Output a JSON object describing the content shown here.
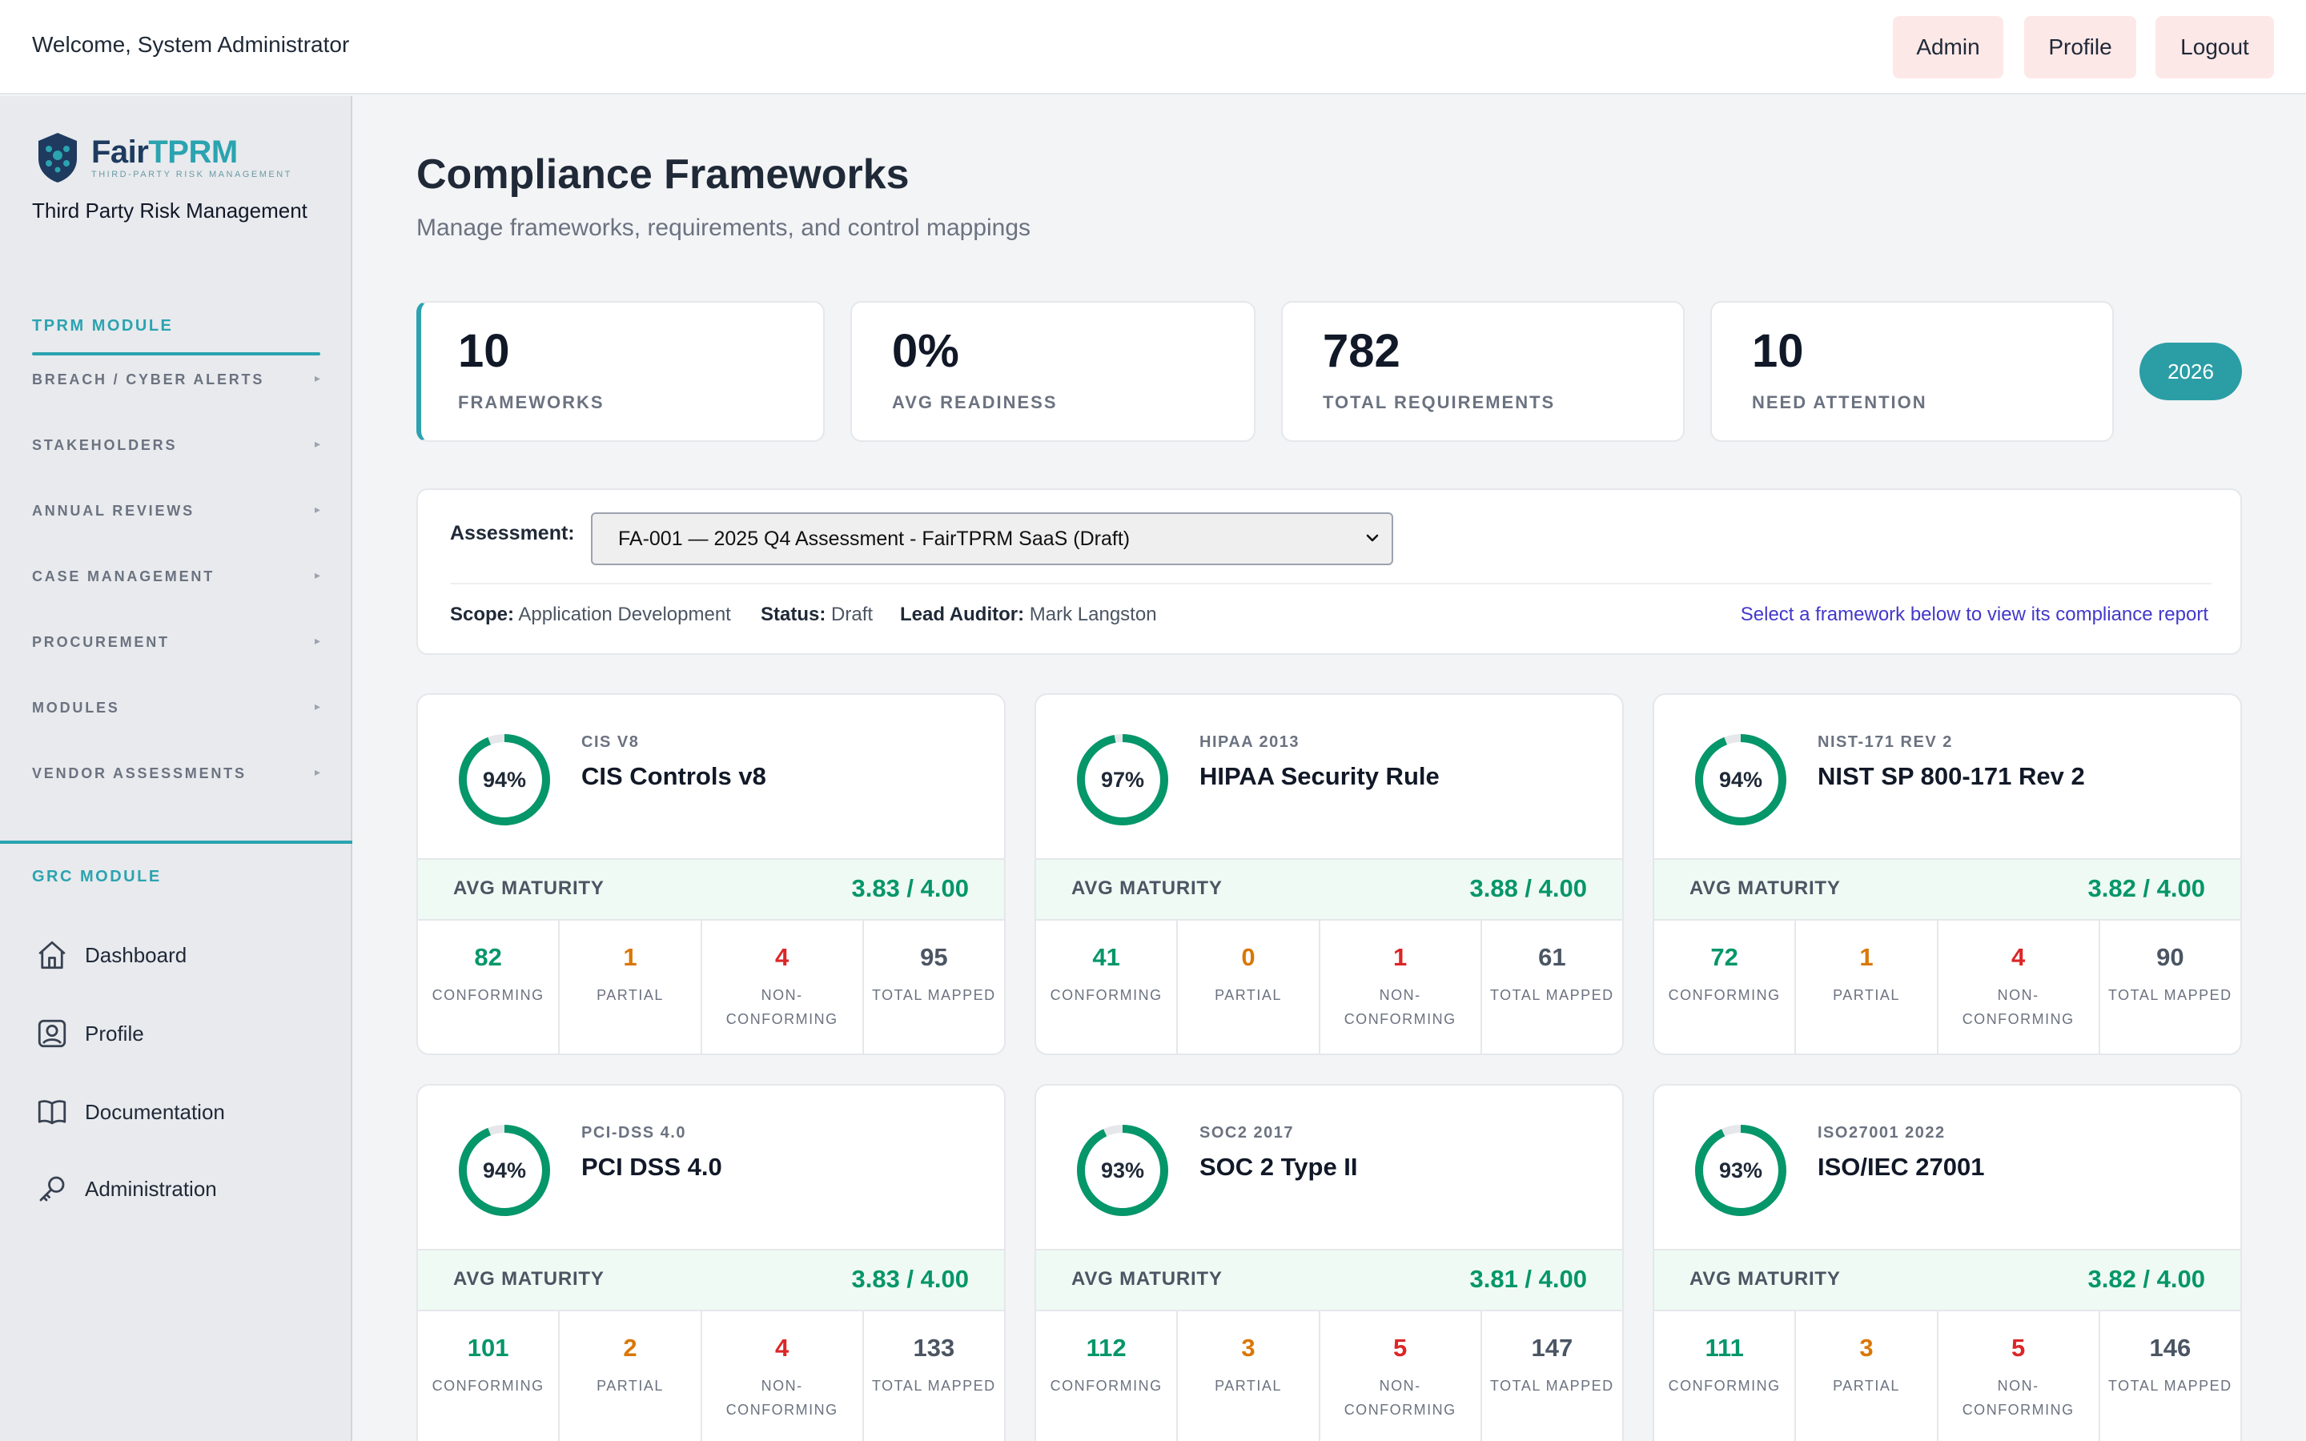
{
  "topbar": {
    "welcome": "Welcome, System Administrator",
    "buttons": {
      "admin": "Admin",
      "profile": "Profile",
      "logout": "Logout"
    }
  },
  "sidebar": {
    "logo": {
      "fair": "Fair",
      "tprm": "TPRM",
      "tagline": "THIRD-PARTY RISK MANAGEMENT"
    },
    "subtitle": "Third Party Risk Management",
    "tprm_heading": "TPRM MODULE",
    "tprm_items": [
      {
        "label": "BREACH / CYBER ALERTS",
        "caret": "▸"
      },
      {
        "label": "STAKEHOLDERS",
        "caret": "▸"
      },
      {
        "label": "ANNUAL REVIEWS",
        "caret": "▸"
      },
      {
        "label": "CASE MANAGEMENT",
        "caret": "▸"
      },
      {
        "label": "PROCUREMENT",
        "caret": "▸"
      },
      {
        "label": "MODULES",
        "caret": "▸"
      },
      {
        "label": "VENDOR ASSESSMENTS",
        "caret": "▸"
      }
    ],
    "grc_heading": "GRC MODULE",
    "grc_items": [
      {
        "label": "Dashboard",
        "icon": "home-icon"
      },
      {
        "label": "Profile",
        "icon": "user-icon"
      },
      {
        "label": "Documentation",
        "icon": "book-icon"
      },
      {
        "label": "Administration",
        "icon": "key-icon"
      }
    ]
  },
  "page": {
    "title": "Compliance Frameworks",
    "subtitle": "Manage frameworks, requirements, and control mappings"
  },
  "stats": [
    {
      "value": "10",
      "label": "FRAMEWORKS"
    },
    {
      "value": "0%",
      "label": "AVG READINESS"
    },
    {
      "value": "782",
      "label": "TOTAL REQUIREMENTS"
    },
    {
      "value": "10",
      "label": "NEED ATTENTION"
    }
  ],
  "year": "2026",
  "assessment": {
    "label": "Assessment:",
    "selected": "FA-001 — 2025 Q4 Assessment - FairTPRM SaaS (Draft)",
    "scope_label": "Scope:",
    "scope": "Application Development",
    "status_label": "Status:",
    "status": "Draft",
    "auditor_label": "Lead Auditor:",
    "auditor": "Mark Langston",
    "hint": "Select a framework below to view its compliance report"
  },
  "labels": {
    "avg_maturity": "AVG MATURITY",
    "conforming": "CONFORMING",
    "partial": "PARTIAL",
    "non_conforming": "NON-CONFORMING",
    "total_mapped": "TOTAL MAPPED"
  },
  "frameworks": [
    {
      "code": "CIS V8",
      "name": "CIS Controls v8",
      "pct_label": "94%",
      "pct": 94,
      "maturity": "3.83 / 4.00",
      "conforming": "82",
      "partial": "1",
      "non_conforming": "4",
      "total": "95"
    },
    {
      "code": "HIPAA 2013",
      "name": "HIPAA Security Rule",
      "pct_label": "97%",
      "pct": 97,
      "maturity": "3.88 / 4.00",
      "conforming": "41",
      "partial": "0",
      "non_conforming": "1",
      "total": "61"
    },
    {
      "code": "NIST-171 REV 2",
      "name": "NIST SP 800-171 Rev 2",
      "pct_label": "94%",
      "pct": 94,
      "maturity": "3.82 / 4.00",
      "conforming": "72",
      "partial": "1",
      "non_conforming": "4",
      "total": "90"
    },
    {
      "code": "PCI-DSS 4.0",
      "name": "PCI DSS 4.0",
      "pct_label": "94%",
      "pct": 94,
      "maturity": "3.83 / 4.00",
      "conforming": "101",
      "partial": "2",
      "non_conforming": "4",
      "total": "133"
    },
    {
      "code": "SOC2 2017",
      "name": "SOC 2 Type II",
      "pct_label": "93%",
      "pct": 93,
      "maturity": "3.81 / 4.00",
      "conforming": "112",
      "partial": "3",
      "non_conforming": "5",
      "total": "147"
    },
    {
      "code": "ISO27001 2022",
      "name": "ISO/IEC 27001",
      "pct_label": "93%",
      "pct": 93,
      "maturity": "3.82 / 4.00",
      "conforming": "111",
      "partial": "3",
      "non_conforming": "5",
      "total": "146"
    }
  ],
  "colors": {
    "accent": "#2ba3b0",
    "success": "#059669",
    "warning": "#d97706",
    "danger": "#dc2626"
  }
}
